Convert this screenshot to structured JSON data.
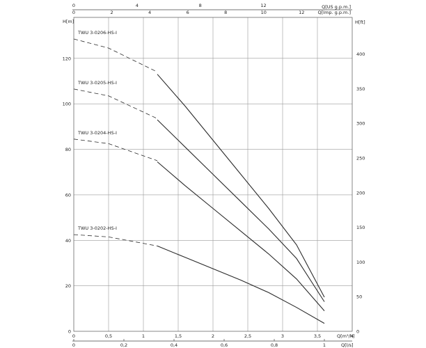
{
  "chart_data": {
    "type": "line",
    "x": {
      "label": "Q[m³/h]",
      "range": [
        0,
        4
      ],
      "ticks": [
        "0",
        "0,5",
        "1",
        "1,5",
        "2",
        "2,5",
        "3",
        "3,5",
        "4"
      ]
    },
    "x2_ls": {
      "label": "Q[l/s]",
      "ticks": [
        "0",
        "0,2",
        "0,4",
        "0,6",
        "0,8",
        "1"
      ]
    },
    "x_top_imp": {
      "label": "Q[Imp. g.p.m.]",
      "ticks": [
        "0",
        "2",
        "4",
        "6",
        "8",
        "10",
        "12"
      ]
    },
    "x_top_us": {
      "label": "Q[US g.p.m.]",
      "ticks": [
        "0",
        "4",
        "8",
        "12"
      ]
    },
    "y": {
      "label": "H[m]",
      "range": [
        0,
        138
      ],
      "ticks": [
        "0",
        "20",
        "40",
        "60",
        "80",
        "100",
        "120"
      ]
    },
    "y2_ft": {
      "label": "H[ft]",
      "ticks": [
        "0",
        "50",
        "100",
        "150",
        "200",
        "250",
        "300",
        "350",
        "400"
      ]
    },
    "grid": true,
    "series": [
      {
        "name": "TWU 3-0206-HS-I",
        "dashed": {
          "x": [
            0,
            0.5,
            1.2
          ],
          "y": [
            128.5,
            124.5,
            114
          ]
        },
        "values": {
          "x": [
            1.2,
            1.6,
            2.0,
            2.4,
            2.8,
            3.2,
            3.6
          ],
          "y": [
            113,
            99,
            84,
            69,
            54,
            38,
            15
          ]
        }
      },
      {
        "name": "TWU 3-0205-HS-I",
        "dashed": {
          "x": [
            0,
            0.5,
            1.2
          ],
          "y": [
            106.5,
            103.5,
            93.5
          ]
        },
        "values": {
          "x": [
            1.2,
            1.6,
            2.0,
            2.4,
            2.8,
            3.2,
            3.6
          ],
          "y": [
            93,
            81,
            69,
            57,
            45,
            32,
            13
          ]
        }
      },
      {
        "name": "TWU 3-0204-HS-I",
        "dashed": {
          "x": [
            0,
            0.5,
            1.2
          ],
          "y": [
            84.5,
            82.5,
            75
          ]
        },
        "values": {
          "x": [
            1.2,
            1.6,
            2.0,
            2.4,
            2.8,
            3.2,
            3.6
          ],
          "y": [
            74.5,
            64,
            54,
            44,
            34,
            23,
            9
          ]
        }
      },
      {
        "name": "TWU 3-0202-HS-I",
        "dashed": {
          "x": [
            0,
            0.5,
            1.2
          ],
          "y": [
            42.5,
            41.5,
            37.5
          ]
        },
        "values": {
          "x": [
            1.2,
            1.6,
            2.0,
            2.4,
            2.8,
            3.2,
            3.6
          ],
          "y": [
            37.5,
            32.5,
            27.5,
            22.5,
            17,
            10.5,
            3.5
          ]
        }
      }
    ]
  }
}
